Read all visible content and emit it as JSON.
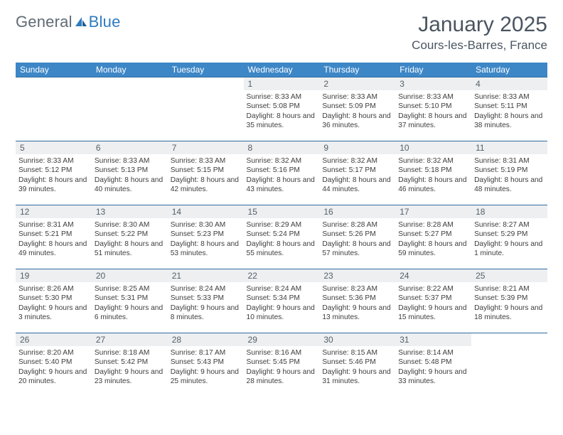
{
  "brand": {
    "part1": "General",
    "part2": "Blue"
  },
  "title": "January 2025",
  "location": "Cours-les-Barres, France",
  "colors": {
    "header_bg": "#3d87c7",
    "header_text": "#ffffff",
    "row_divider": "#2f6aa0",
    "daynum_bg": "#edeff1",
    "text": "#3d3d3d",
    "title_text": "#4a5560",
    "logo_gray": "#5f6b74",
    "logo_blue": "#2f7bbf"
  },
  "font": {
    "day_body_pt": 10.2,
    "daynum_pt": 12,
    "header_pt": 12,
    "title_pt": 30,
    "location_pt": 17
  },
  "dayNames": [
    "Sunday",
    "Monday",
    "Tuesday",
    "Wednesday",
    "Thursday",
    "Friday",
    "Saturday"
  ],
  "weeks": [
    [
      null,
      null,
      null,
      {
        "n": "1",
        "sr": "8:33 AM",
        "ss": "5:08 PM",
        "dl": "8 hours and 35 minutes."
      },
      {
        "n": "2",
        "sr": "8:33 AM",
        "ss": "5:09 PM",
        "dl": "8 hours and 36 minutes."
      },
      {
        "n": "3",
        "sr": "8:33 AM",
        "ss": "5:10 PM",
        "dl": "8 hours and 37 minutes."
      },
      {
        "n": "4",
        "sr": "8:33 AM",
        "ss": "5:11 PM",
        "dl": "8 hours and 38 minutes."
      }
    ],
    [
      {
        "n": "5",
        "sr": "8:33 AM",
        "ss": "5:12 PM",
        "dl": "8 hours and 39 minutes."
      },
      {
        "n": "6",
        "sr": "8:33 AM",
        "ss": "5:13 PM",
        "dl": "8 hours and 40 minutes."
      },
      {
        "n": "7",
        "sr": "8:33 AM",
        "ss": "5:15 PM",
        "dl": "8 hours and 42 minutes."
      },
      {
        "n": "8",
        "sr": "8:32 AM",
        "ss": "5:16 PM",
        "dl": "8 hours and 43 minutes."
      },
      {
        "n": "9",
        "sr": "8:32 AM",
        "ss": "5:17 PM",
        "dl": "8 hours and 44 minutes."
      },
      {
        "n": "10",
        "sr": "8:32 AM",
        "ss": "5:18 PM",
        "dl": "8 hours and 46 minutes."
      },
      {
        "n": "11",
        "sr": "8:31 AM",
        "ss": "5:19 PM",
        "dl": "8 hours and 48 minutes."
      }
    ],
    [
      {
        "n": "12",
        "sr": "8:31 AM",
        "ss": "5:21 PM",
        "dl": "8 hours and 49 minutes."
      },
      {
        "n": "13",
        "sr": "8:30 AM",
        "ss": "5:22 PM",
        "dl": "8 hours and 51 minutes."
      },
      {
        "n": "14",
        "sr": "8:30 AM",
        "ss": "5:23 PM",
        "dl": "8 hours and 53 minutes."
      },
      {
        "n": "15",
        "sr": "8:29 AM",
        "ss": "5:24 PM",
        "dl": "8 hours and 55 minutes."
      },
      {
        "n": "16",
        "sr": "8:28 AM",
        "ss": "5:26 PM",
        "dl": "8 hours and 57 minutes."
      },
      {
        "n": "17",
        "sr": "8:28 AM",
        "ss": "5:27 PM",
        "dl": "8 hours and 59 minutes."
      },
      {
        "n": "18",
        "sr": "8:27 AM",
        "ss": "5:29 PM",
        "dl": "9 hours and 1 minute."
      }
    ],
    [
      {
        "n": "19",
        "sr": "8:26 AM",
        "ss": "5:30 PM",
        "dl": "9 hours and 3 minutes."
      },
      {
        "n": "20",
        "sr": "8:25 AM",
        "ss": "5:31 PM",
        "dl": "9 hours and 6 minutes."
      },
      {
        "n": "21",
        "sr": "8:24 AM",
        "ss": "5:33 PM",
        "dl": "9 hours and 8 minutes."
      },
      {
        "n": "22",
        "sr": "8:24 AM",
        "ss": "5:34 PM",
        "dl": "9 hours and 10 minutes."
      },
      {
        "n": "23",
        "sr": "8:23 AM",
        "ss": "5:36 PM",
        "dl": "9 hours and 13 minutes."
      },
      {
        "n": "24",
        "sr": "8:22 AM",
        "ss": "5:37 PM",
        "dl": "9 hours and 15 minutes."
      },
      {
        "n": "25",
        "sr": "8:21 AM",
        "ss": "5:39 PM",
        "dl": "9 hours and 18 minutes."
      }
    ],
    [
      {
        "n": "26",
        "sr": "8:20 AM",
        "ss": "5:40 PM",
        "dl": "9 hours and 20 minutes."
      },
      {
        "n": "27",
        "sr": "8:18 AM",
        "ss": "5:42 PM",
        "dl": "9 hours and 23 minutes."
      },
      {
        "n": "28",
        "sr": "8:17 AM",
        "ss": "5:43 PM",
        "dl": "9 hours and 25 minutes."
      },
      {
        "n": "29",
        "sr": "8:16 AM",
        "ss": "5:45 PM",
        "dl": "9 hours and 28 minutes."
      },
      {
        "n": "30",
        "sr": "8:15 AM",
        "ss": "5:46 PM",
        "dl": "9 hours and 31 minutes."
      },
      {
        "n": "31",
        "sr": "8:14 AM",
        "ss": "5:48 PM",
        "dl": "9 hours and 33 minutes."
      },
      null
    ]
  ],
  "labels": {
    "sunrise": "Sunrise:",
    "sunset": "Sunset:",
    "daylight": "Daylight:"
  }
}
